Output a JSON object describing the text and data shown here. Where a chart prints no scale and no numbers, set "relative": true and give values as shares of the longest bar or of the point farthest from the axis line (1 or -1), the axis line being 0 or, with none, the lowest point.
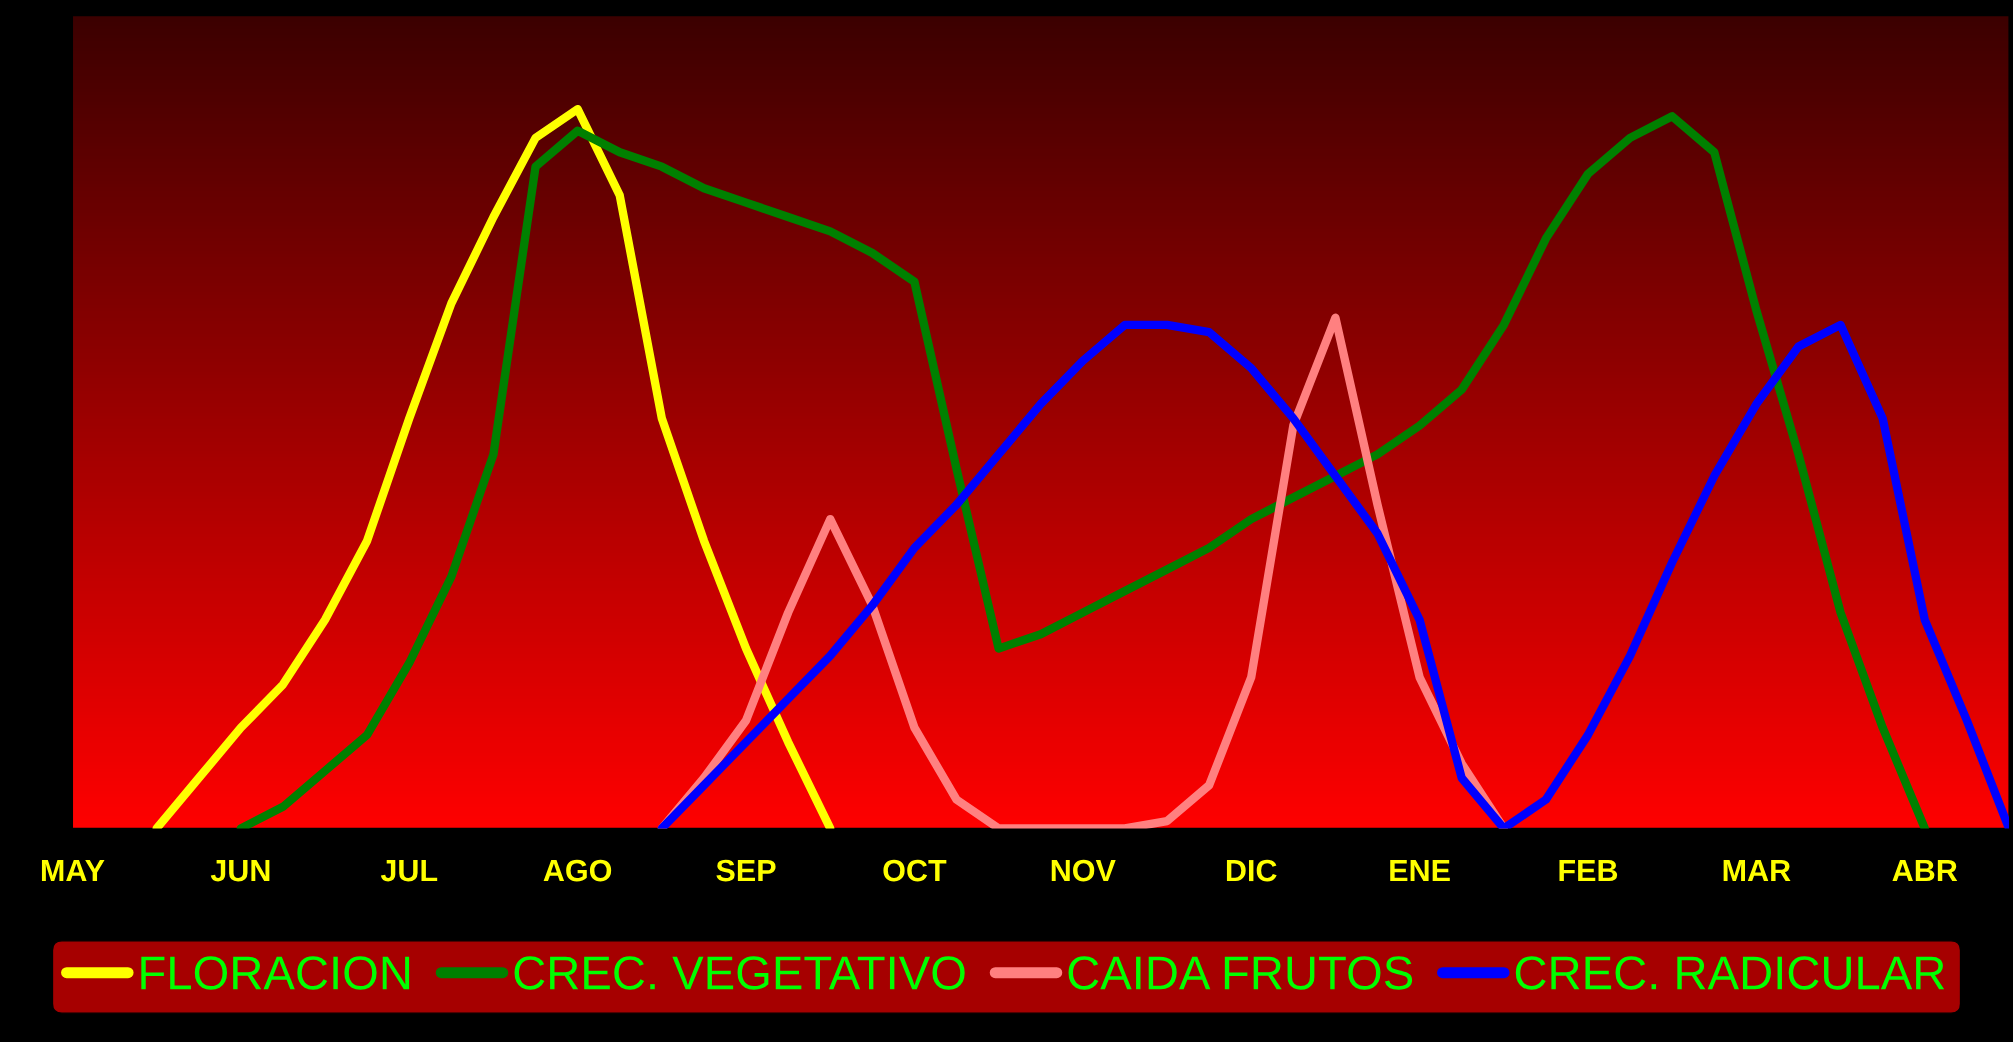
{
  "chart_data": {
    "type": "line",
    "relative": true,
    "legend": "bottom",
    "line_style": "solid",
    "marker": "none",
    "categories": [
      "MAY",
      null,
      null,
      null,
      "JUN",
      null,
      null,
      null,
      "JUL",
      null,
      null,
      null,
      "AGO",
      null,
      null,
      null,
      "SEP",
      null,
      null,
      null,
      "OCT",
      null,
      null,
      null,
      "NOV",
      null,
      null,
      null,
      "DIC",
      null,
      null,
      null,
      "ENE",
      null,
      null,
      null,
      "FEB",
      null,
      null,
      null,
      "MAR",
      null,
      null,
      null,
      "ABR",
      null,
      null
    ],
    "series": [
      {
        "name": "FLORACION",
        "color": "#ffff00",
        "values": [
          null,
          null,
          0,
          0.07,
          0.14,
          0.2,
          0.29,
          0.4,
          0.57,
          0.73,
          0.85,
          0.96,
          1.0,
          0.88,
          0.57,
          0.4,
          0.25,
          0.12,
          0,
          null,
          null,
          null,
          null,
          null,
          null,
          null,
          null,
          null,
          null,
          null,
          null,
          null,
          null,
          null,
          null,
          null,
          null,
          null,
          null,
          null,
          null,
          null,
          null,
          null,
          null,
          null,
          null
        ]
      },
      {
        "name": "CREC. VEGETATIVO",
        "color": "#008000",
        "values": [
          null,
          null,
          null,
          null,
          0,
          0.03,
          0.08,
          0.13,
          0.23,
          0.35,
          0.52,
          0.92,
          0.97,
          0.94,
          0.92,
          0.89,
          0.87,
          0.85,
          0.83,
          0.8,
          0.76,
          0.5,
          0.25,
          0.27,
          0.3,
          0.33,
          0.36,
          0.39,
          0.43,
          0.46,
          0.49,
          0.52,
          0.56,
          0.61,
          0.7,
          0.82,
          0.91,
          0.96,
          0.99,
          0.94,
          0.72,
          0.52,
          0.3,
          0.14,
          0,
          null,
          null
        ]
      },
      {
        "name": "CAIDA FRUTOS",
        "color": "#ff8080",
        "values": [
          null,
          null,
          null,
          null,
          null,
          null,
          null,
          null,
          null,
          null,
          null,
          null,
          null,
          null,
          0,
          0.07,
          0.15,
          0.3,
          0.43,
          0.31,
          0.14,
          0.04,
          0,
          0,
          0,
          0,
          0.01,
          0.06,
          0.21,
          0.56,
          0.71,
          0.45,
          0.21,
          0.09,
          0,
          null,
          null,
          null,
          null,
          null,
          null,
          null,
          null,
          null,
          null,
          null,
          null
        ]
      },
      {
        "name": "CREC. RADICULAR",
        "color": "#0000ff",
        "values": [
          null,
          null,
          null,
          null,
          null,
          null,
          null,
          null,
          null,
          null,
          null,
          null,
          null,
          null,
          0,
          0.06,
          0.12,
          0.18,
          0.24,
          0.31,
          0.39,
          0.45,
          0.52,
          0.59,
          0.65,
          0.7,
          0.7,
          0.69,
          0.64,
          0.57,
          0.49,
          0.41,
          0.29,
          0.07,
          0,
          0.04,
          0.13,
          0.24,
          0.37,
          0.49,
          0.59,
          0.67,
          0.7,
          0.57,
          0.29,
          0.15,
          0
        ]
      }
    ]
  }
}
